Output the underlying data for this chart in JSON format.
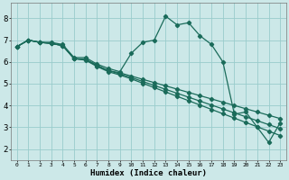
{
  "title": "",
  "xlabel": "Humidex (Indice chaleur)",
  "ylabel": "",
  "bg_color": "#cce8e8",
  "grid_color": "#99cccc",
  "line_color": "#1a6b5a",
  "xlim": [
    -0.5,
    23.5
  ],
  "ylim": [
    1.5,
    8.7
  ],
  "yticks": [
    2,
    3,
    4,
    5,
    6,
    7,
    8
  ],
  "xtick_labels": [
    "0",
    "1",
    "2",
    "3",
    "4",
    "5",
    "6",
    "7",
    "8",
    "9",
    "10",
    "11",
    "12",
    "13",
    "14",
    "15",
    "16",
    "17",
    "18",
    "19",
    "20",
    "21",
    "22",
    "23"
  ],
  "series": [
    {
      "x": [
        0,
        1,
        2,
        3,
        4,
        5,
        6,
        7,
        8,
        9,
        10,
        11,
        12,
        13,
        14,
        15,
        16,
        17,
        18,
        19,
        20,
        21,
        22,
        23
      ],
      "y": [
        6.7,
        7.0,
        6.9,
        6.9,
        6.8,
        6.2,
        6.2,
        5.9,
        5.7,
        5.55,
        6.4,
        6.9,
        7.0,
        8.1,
        7.7,
        7.8,
        7.2,
        6.8,
        6.0,
        3.6,
        3.7,
        3.0,
        2.3,
        3.2
      ]
    },
    {
      "x": [
        0,
        1,
        2,
        3,
        4,
        5,
        6,
        7,
        8,
        9,
        10,
        11,
        12,
        13,
        14,
        15,
        16,
        17,
        18,
        19,
        20,
        21,
        22,
        23
      ],
      "y": [
        6.7,
        7.0,
        6.9,
        6.85,
        6.75,
        6.15,
        6.12,
        5.85,
        5.6,
        5.5,
        5.35,
        5.2,
        5.05,
        4.9,
        4.75,
        4.6,
        4.45,
        4.3,
        4.15,
        4.0,
        3.85,
        3.7,
        3.55,
        3.4
      ]
    },
    {
      "x": [
        0,
        1,
        2,
        3,
        4,
        5,
        6,
        7,
        8,
        9,
        10,
        11,
        12,
        13,
        14,
        15,
        16,
        17,
        18,
        19,
        20,
        21,
        22,
        23
      ],
      "y": [
        6.7,
        7.0,
        6.9,
        6.85,
        6.75,
        6.15,
        6.1,
        5.82,
        5.6,
        5.45,
        5.28,
        5.1,
        4.92,
        4.74,
        4.56,
        4.38,
        4.2,
        4.02,
        3.84,
        3.66,
        3.48,
        3.3,
        3.12,
        2.94
      ]
    },
    {
      "x": [
        0,
        1,
        2,
        3,
        4,
        5,
        6,
        7,
        8,
        9,
        10,
        11,
        12,
        13,
        14,
        15,
        16,
        17,
        18,
        19,
        20,
        21,
        22,
        23
      ],
      "y": [
        6.7,
        7.0,
        6.9,
        6.85,
        6.75,
        6.15,
        6.08,
        5.79,
        5.55,
        5.4,
        5.22,
        5.02,
        4.82,
        4.62,
        4.42,
        4.22,
        4.02,
        3.82,
        3.62,
        3.42,
        3.22,
        3.02,
        2.82,
        2.62
      ]
    }
  ]
}
